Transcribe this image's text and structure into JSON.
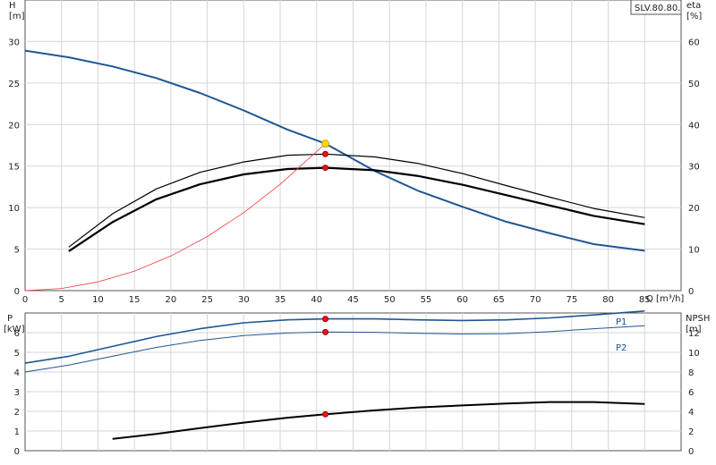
{
  "chart_data": [
    {
      "type": "line",
      "panel": "head-efficiency",
      "title": "SLV.80.80.",
      "x_unit_label": "Q [m³/h]",
      "y_left_label": "H",
      "y_left_unit": "[m]",
      "y_right_label": "eta",
      "y_right_unit": "[%]",
      "xlim": [
        0,
        90
      ],
      "ylim_left": [
        0,
        35
      ],
      "ylim_right": [
        0,
        70
      ],
      "x_ticks": [
        0,
        5,
        10,
        15,
        20,
        25,
        30,
        35,
        40,
        45,
        50,
        55,
        60,
        65,
        70,
        75,
        80,
        85
      ],
      "y_left_ticks": [
        0,
        5,
        10,
        15,
        20,
        25,
        30
      ],
      "y_right_ticks": [
        0,
        10,
        20,
        30,
        40,
        50,
        60
      ],
      "grid": true,
      "series": [
        {
          "axis": "left",
          "color": "#1f5694",
          "width": 2,
          "points": [
            [
              0,
              28.9
            ],
            [
              6,
              28.1
            ],
            [
              12,
              27.0
            ],
            [
              18,
              25.6
            ],
            [
              24,
              23.8
            ],
            [
              30,
              21.7
            ],
            [
              36,
              19.4
            ],
            [
              41.2,
              17.7
            ],
            [
              48,
              14.4
            ],
            [
              54,
              12.0
            ],
            [
              60,
              10.1
            ],
            [
              66,
              8.3
            ],
            [
              72,
              6.9
            ],
            [
              78,
              5.6
            ],
            [
              85,
              4.8
            ]
          ]
        },
        {
          "axis": "right",
          "color": "#000000",
          "width": 1.2,
          "points": [
            [
              6,
              10.5
            ],
            [
              12,
              18.5
            ],
            [
              18,
              24.5
            ],
            [
              24,
              28.5
            ],
            [
              30,
              31.0
            ],
            [
              36,
              32.6
            ],
            [
              41.2,
              32.9
            ],
            [
              48,
              32.2
            ],
            [
              54,
              30.6
            ],
            [
              60,
              28.2
            ],
            [
              66,
              25.3
            ],
            [
              72,
              22.5
            ],
            [
              78,
              19.8
            ],
            [
              85,
              17.6
            ]
          ]
        },
        {
          "axis": "right",
          "color": "#000000",
          "width": 2.2,
          "points": [
            [
              6,
              9.5
            ],
            [
              12,
              16.5
            ],
            [
              18,
              22.0
            ],
            [
              24,
              25.6
            ],
            [
              30,
              28.0
            ],
            [
              36,
              29.3
            ],
            [
              41.2,
              29.6
            ],
            [
              48,
              29.0
            ],
            [
              54,
              27.6
            ],
            [
              60,
              25.5
            ],
            [
              66,
              23.0
            ],
            [
              72,
              20.5
            ],
            [
              78,
              18.0
            ],
            [
              85,
              16.0
            ]
          ]
        },
        {
          "axis": "left",
          "color": "#ee3b3b",
          "width": 0.8,
          "points": [
            [
              0,
              0
            ],
            [
              5,
              0.26
            ],
            [
              10,
              1.04
            ],
            [
              15,
              2.35
            ],
            [
              20,
              4.17
            ],
            [
              25,
              6.52
            ],
            [
              30,
              9.39
            ],
            [
              35,
              12.8
            ],
            [
              41.2,
              17.7
            ]
          ]
        }
      ],
      "markers": [
        {
          "x": 41.2,
          "y": 17.7,
          "axis": "left",
          "fill": "#ffd700",
          "stroke": "#c9a400",
          "r": 4
        },
        {
          "x": 41.2,
          "y": 32.9,
          "axis": "right",
          "fill": "#ee1111",
          "stroke": "#aa0000",
          "r": 3
        },
        {
          "x": 41.2,
          "y": 29.6,
          "axis": "right",
          "fill": "#ee1111",
          "stroke": "#aa0000",
          "r": 3
        }
      ]
    },
    {
      "type": "line",
      "panel": "power-npsh",
      "y_left_label": "P",
      "y_left_unit": "[kW]",
      "y_right_label": "NPSH",
      "y_right_unit": "[m]",
      "xlim": [
        0,
        90
      ],
      "ylim_left": [
        0,
        7
      ],
      "ylim_right": [
        0,
        14
      ],
      "y_left_ticks": [
        0,
        1,
        2,
        3,
        4,
        5,
        6
      ],
      "y_right_ticks": [
        0,
        2,
        4,
        6,
        8,
        10,
        12
      ],
      "grid": true,
      "series": [
        {
          "name": "P1",
          "axis": "left",
          "color": "#1f5694",
          "width": 1.6,
          "points": [
            [
              0,
              4.45
            ],
            [
              6,
              4.8
            ],
            [
              12,
              5.3
            ],
            [
              18,
              5.8
            ],
            [
              24,
              6.2
            ],
            [
              30,
              6.5
            ],
            [
              36,
              6.65
            ],
            [
              41.2,
              6.7
            ],
            [
              48,
              6.7
            ],
            [
              54,
              6.65
            ],
            [
              60,
              6.62
            ],
            [
              66,
              6.65
            ],
            [
              72,
              6.75
            ],
            [
              78,
              6.9
            ],
            [
              85,
              7.1
            ]
          ]
        },
        {
          "name": "P2",
          "axis": "left",
          "color": "#1f5694",
          "width": 1,
          "points": [
            [
              0,
              4.0
            ],
            [
              6,
              4.35
            ],
            [
              12,
              4.8
            ],
            [
              18,
              5.25
            ],
            [
              24,
              5.6
            ],
            [
              30,
              5.85
            ],
            [
              36,
              5.98
            ],
            [
              41.2,
              6.03
            ],
            [
              48,
              6.02
            ],
            [
              54,
              5.97
            ],
            [
              60,
              5.93
            ],
            [
              66,
              5.95
            ],
            [
              72,
              6.05
            ],
            [
              78,
              6.2
            ],
            [
              85,
              6.35
            ]
          ]
        },
        {
          "axis": "right",
          "color": "#000000",
          "width": 2,
          "points": [
            [
              12,
              1.2
            ],
            [
              18,
              1.7
            ],
            [
              24,
              2.3
            ],
            [
              30,
              2.85
            ],
            [
              36,
              3.35
            ],
            [
              41.2,
              3.7
            ],
            [
              48,
              4.1
            ],
            [
              54,
              4.4
            ],
            [
              60,
              4.6
            ],
            [
              66,
              4.8
            ],
            [
              72,
              4.95
            ],
            [
              78,
              4.95
            ],
            [
              85,
              4.75
            ]
          ]
        }
      ],
      "markers": [
        {
          "x": 41.2,
          "y": 6.7,
          "axis": "left",
          "fill": "#ee1111",
          "stroke": "#aa0000",
          "r": 3
        },
        {
          "x": 41.2,
          "y": 6.03,
          "axis": "left",
          "fill": "#ee1111",
          "stroke": "#aa0000",
          "r": 3
        },
        {
          "x": 41.2,
          "y": 3.7,
          "axis": "right",
          "fill": "#ee1111",
          "stroke": "#aa0000",
          "r": 3
        }
      ]
    }
  ]
}
